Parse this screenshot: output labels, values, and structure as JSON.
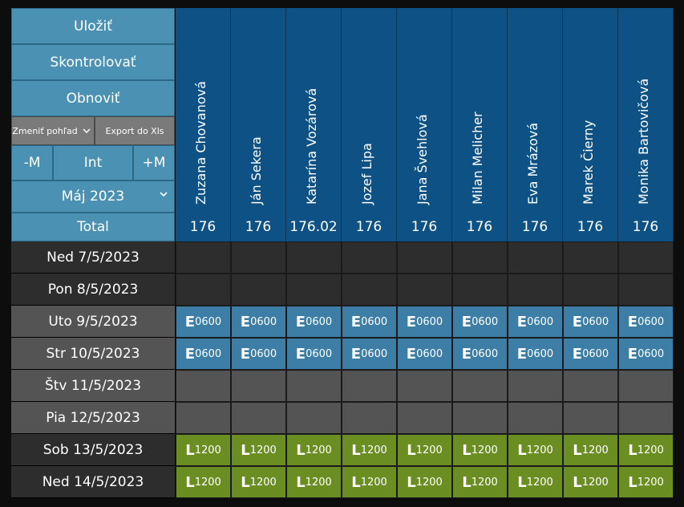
{
  "controls": {
    "save": "Uložiť",
    "check": "Skontrolovať",
    "refresh": "Obnoviť",
    "change_view": "Zmeniť pohľad",
    "export": "Export do Xls",
    "minus_m": "-M",
    "int": "Int",
    "plus_m": "+M",
    "month": "Máj 2023",
    "total_label": "Total"
  },
  "employees": [
    {
      "name": "Zuzana Chovanová",
      "total": "176"
    },
    {
      "name": "Ján Sekera",
      "total": "176"
    },
    {
      "name": "Katarína Vozárová",
      "total": "176.02"
    },
    {
      "name": "Jozef Lipa",
      "total": "176"
    },
    {
      "name": "Jana Švehlová",
      "total": "176"
    },
    {
      "name": "Milan Melicher",
      "total": "176"
    },
    {
      "name": "Eva Mrázová",
      "total": "176"
    },
    {
      "name": "Marek Čierny",
      "total": "176"
    },
    {
      "name": "Monika Bartovičová",
      "total": "176"
    }
  ],
  "days": [
    {
      "label": "Ned 7/5/2023",
      "kind": "dark",
      "shift": null
    },
    {
      "label": "Pon 8/5/2023",
      "kind": "dark",
      "shift": null
    },
    {
      "label": "Uto 9/5/2023",
      "kind": "gray",
      "shift": {
        "code": "E",
        "time": "0600",
        "color": "#3d7ea6"
      }
    },
    {
      "label": "Str 10/5/2023",
      "kind": "gray",
      "shift": {
        "code": "E",
        "time": "0600",
        "color": "#3d7ea6"
      }
    },
    {
      "label": "Štv 11/5/2023",
      "kind": "gray",
      "shift": null
    },
    {
      "label": "Pia 12/5/2023",
      "kind": "gray",
      "shift": null
    },
    {
      "label": "Sob 13/5/2023",
      "kind": "dark",
      "shift": {
        "code": "L",
        "time": "1200",
        "color": "#6b8e23"
      }
    },
    {
      "label": "Ned 14/5/2023",
      "kind": "dark",
      "shift": {
        "code": "L",
        "time": "1200",
        "color": "#6b8e23"
      }
    }
  ],
  "colors": {
    "header_blue": "#0e5285",
    "control_blue": "#4a91b3",
    "early_shift": "#3d7ea6",
    "late_shift": "#6b8e23"
  }
}
